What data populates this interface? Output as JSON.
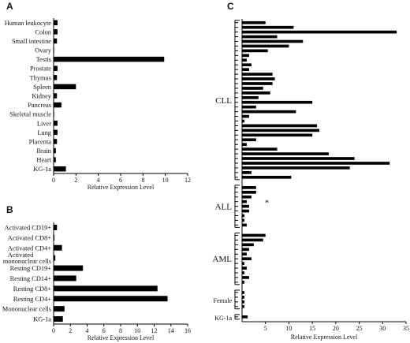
{
  "chart_data": [
    {
      "panel": "A",
      "type": "bar",
      "orientation": "horizontal",
      "categories": [
        "Human leukocyte",
        "Colon",
        "Small intestine",
        "Ovary",
        "Testis",
        "Prostate",
        "Thymus",
        "Spleen",
        "Kidney",
        "Pancreas",
        "Skeletal muscle",
        "Liver",
        "Lung",
        "Placenta",
        "Brain",
        "Heart",
        "KG-1a"
      ],
      "values": [
        0.35,
        0.35,
        0.3,
        0.05,
        9.9,
        0.35,
        0.3,
        2.0,
        0.3,
        0.7,
        0.05,
        0.35,
        0.35,
        0.3,
        0.2,
        0.2,
        1.1
      ],
      "xlabel": "Relative Expression Level",
      "xlim": [
        0,
        12
      ],
      "xticks": [
        "0",
        "2",
        "4",
        "6",
        "8",
        "10",
        "12"
      ]
    },
    {
      "panel": "B",
      "type": "bar",
      "orientation": "horizontal",
      "categories": [
        "Activated CD19+",
        "Activated CD8+",
        "Activated CD4+",
        "Activated mononuclear cells",
        "Resting CD19+",
        "Resting CD14+",
        "Resting CD8+",
        "Resting CD4+",
        "Mononuclear cells",
        "KG-1a"
      ],
      "values": [
        0.4,
        0.1,
        1.0,
        0.2,
        3.5,
        2.7,
        12.4,
        13.6,
        1.3,
        1.1
      ],
      "xlabel": "Relative Expression Level",
      "xlim": [
        0,
        16
      ],
      "xticks": [
        "0",
        "2",
        "4",
        "6",
        "8",
        "10",
        "12",
        "14",
        "16"
      ]
    },
    {
      "panel": "C",
      "type": "bar",
      "orientation": "horizontal",
      "groups": [
        {
          "label": "CLL",
          "values": [
            5.0,
            11.0,
            33.0,
            7.5,
            13.0,
            10.0,
            5.5,
            1.5,
            1.0,
            2.0,
            1.5,
            6.5,
            7.0,
            6.5,
            4.5,
            6.0,
            3.5,
            15.0,
            3.0,
            11.5,
            1.5,
            0.5,
            16.0,
            16.5,
            15.0,
            3.0,
            1.0,
            7.5,
            18.5,
            24.0,
            31.5,
            23.0,
            2.0,
            10.5
          ]
        },
        {
          "label": "ALL",
          "values": [
            3.0,
            3.0,
            2.0,
            1.0,
            1.5,
            1.5,
            0.5,
            0.5,
            1.0
          ],
          "annotation": "*"
        },
        {
          "label": "AML",
          "values": [
            5.0,
            4.5,
            2.5,
            1.5,
            1.0,
            2.0,
            0.5,
            1.0,
            0.5,
            1.5,
            0.5
          ]
        },
        {
          "label": "Female",
          "values": [
            0.5,
            0.5,
            0.5,
            0.5
          ]
        },
        {
          "label": "KG-1a",
          "values": [
            1.2
          ]
        }
      ],
      "xlabel": "Relative Expression Level",
      "xlim": [
        0,
        35
      ],
      "xticks": [
        "5",
        "10",
        "15",
        "20",
        "25",
        "30",
        "35"
      ]
    }
  ]
}
